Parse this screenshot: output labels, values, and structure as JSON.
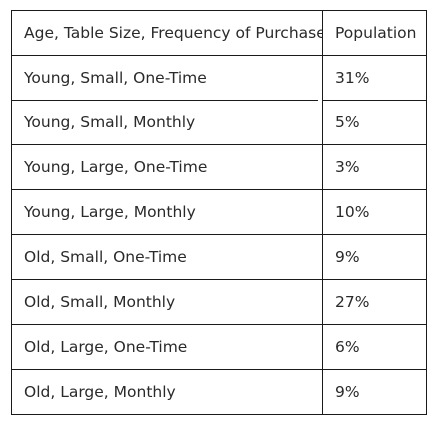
{
  "table": {
    "headers": [
      "Age, Table Size, Frequency of Purchase",
      "Population"
    ],
    "rows": [
      {
        "segment": "Young, Small, One-Time",
        "population": "31%"
      },
      {
        "segment": "Young, Small, Monthly",
        "population": "5%"
      },
      {
        "segment": "Young, Large, One-Time",
        "population": "3%"
      },
      {
        "segment": "Young, Large, Monthly",
        "population": "10%"
      },
      {
        "segment": "Old, Small, One-Time",
        "population": "9%"
      },
      {
        "segment": "Old, Small, Monthly",
        "population": "27%"
      },
      {
        "segment": "Old, Large, One-Time",
        "population": "6%"
      },
      {
        "segment": "Old, Large, Monthly",
        "population": "9%"
      }
    ]
  }
}
